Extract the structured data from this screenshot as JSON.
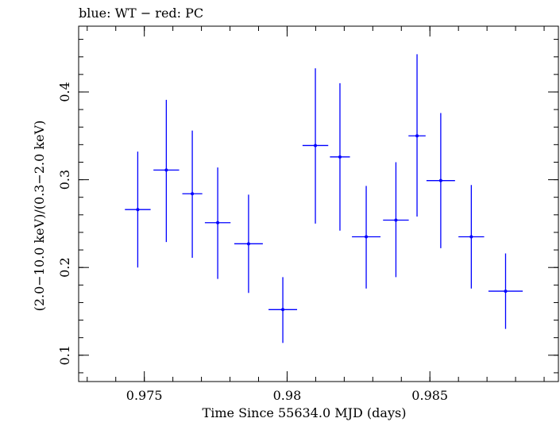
{
  "chart_data": {
    "type": "scatter",
    "title": "blue: WT − red: PC",
    "xlabel": "Time Since 55634.0 MJD (days)",
    "ylabel": "(2.0−10.0 keV)/(0.3−2.0 keV)",
    "xlim": [
      0.9727,
      0.9895
    ],
    "ylim": [
      0.07,
      0.475
    ],
    "x_ticks": [
      {
        "value": 0.975,
        "label": "0.975"
      },
      {
        "value": 0.98,
        "label": "0.98"
      },
      {
        "value": 0.985,
        "label": "0.985"
      }
    ],
    "y_ticks": [
      {
        "value": 0.1,
        "label": "0.1"
      },
      {
        "value": 0.2,
        "label": "0.2"
      },
      {
        "value": 0.3,
        "label": "0.3"
      },
      {
        "value": 0.4,
        "label": "0.4"
      }
    ],
    "x_minor_step": 0.001,
    "y_minor_step": 0.02,
    "grid": false,
    "series": [
      {
        "color": "#0000ff",
        "points": [
          {
            "x": 0.97477,
            "xerr": 0.00045,
            "y": 0.266,
            "ylo": 0.2,
            "yhi": 0.332
          },
          {
            "x": 0.97577,
            "xerr": 0.00045,
            "y": 0.311,
            "ylo": 0.229,
            "yhi": 0.391
          },
          {
            "x": 0.97668,
            "xerr": 0.00035,
            "y": 0.284,
            "ylo": 0.211,
            "yhi": 0.356
          },
          {
            "x": 0.97757,
            "xerr": 0.00045,
            "y": 0.251,
            "ylo": 0.187,
            "yhi": 0.314
          },
          {
            "x": 0.97865,
            "xerr": 0.0005,
            "y": 0.227,
            "ylo": 0.171,
            "yhi": 0.283
          },
          {
            "x": 0.97985,
            "xerr": 0.0005,
            "y": 0.152,
            "ylo": 0.114,
            "yhi": 0.189
          },
          {
            "x": 0.98099,
            "xerr": 0.00045,
            "y": 0.339,
            "ylo": 0.25,
            "yhi": 0.427
          },
          {
            "x": 0.98185,
            "xerr": 0.00035,
            "y": 0.326,
            "ylo": 0.242,
            "yhi": 0.41
          },
          {
            "x": 0.98277,
            "xerr": 0.0005,
            "y": 0.235,
            "ylo": 0.176,
            "yhi": 0.293
          },
          {
            "x": 0.98381,
            "xerr": 0.00045,
            "y": 0.254,
            "ylo": 0.189,
            "yhi": 0.32
          },
          {
            "x": 0.98455,
            "xerr": 0.0003,
            "y": 0.35,
            "ylo": 0.258,
            "yhi": 0.443
          },
          {
            "x": 0.98538,
            "xerr": 0.0005,
            "y": 0.299,
            "ylo": 0.222,
            "yhi": 0.376
          },
          {
            "x": 0.98645,
            "xerr": 0.00045,
            "y": 0.235,
            "ylo": 0.176,
            "yhi": 0.294
          },
          {
            "x": 0.98765,
            "xerr": 0.0006,
            "y": 0.173,
            "ylo": 0.13,
            "yhi": 0.216
          }
        ]
      }
    ]
  }
}
